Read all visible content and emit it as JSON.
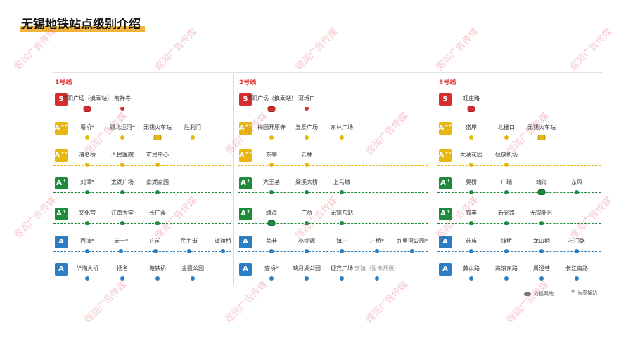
{
  "title": "无锡地铁站点级别介绍",
  "colors": {
    "S": "#d32f2f",
    "A++": "#e6b80f",
    "A+": "#1e8a3c",
    "A": "#2b7ec1",
    "section_title": "#e03a3a"
  },
  "sections": [
    {
      "title": "1号线",
      "rows": [
        {
          "level": "S",
          "stations": [
            "三阳广场（换乘站）",
            "南禅寺"
          ],
          "interchange": [
            0
          ]
        },
        {
          "level": "A++",
          "stations": [
            "堰桥*",
            "锡北运河*",
            "无锡火车站",
            "胜利门"
          ],
          "interchange": [
            2
          ]
        },
        {
          "level": "A++",
          "stations": [
            "清名桥",
            "人民医院",
            "市民中心"
          ],
          "interchange": []
        },
        {
          "level": "A+",
          "stations": [
            "刘潭*",
            "太湖广场",
            "南湖家园"
          ],
          "interchange": []
        },
        {
          "level": "A+",
          "stations": [
            "文化宫",
            "江南大学",
            "长广溪"
          ],
          "interchange": []
        },
        {
          "level": "A",
          "stations": [
            "西漳*",
            "天一*",
            "庄前",
            "民主街",
            "谈渡桥"
          ],
          "interchange": []
        },
        {
          "level": "A",
          "stations": [
            "华清大桥",
            "扬名",
            "塘铁桥",
            "金匮公园"
          ],
          "interchange": []
        }
      ]
    },
    {
      "title": "2号线",
      "rows": [
        {
          "level": "S",
          "stations": [
            "三阳广场（换乘站）",
            "河埒口"
          ],
          "interchange": [
            0
          ]
        },
        {
          "level": "A++",
          "stations": [
            "梅园开原寺",
            "五爱广场",
            "东林广场"
          ],
          "interchange": []
        },
        {
          "level": "A++",
          "stations": [
            "东亭",
            "云林"
          ],
          "interchange": []
        },
        {
          "level": "A+",
          "stations": [
            "大王基",
            "梁溪大桥",
            "上马墩"
          ],
          "interchange": []
        },
        {
          "level": "A+",
          "stations": [
            "靖海",
            "广益",
            "无锡东站"
          ],
          "interchange": [
            0
          ]
        },
        {
          "level": "A",
          "stations": [
            "荣巷",
            "小桃源",
            "镇庄",
            "庄桥*",
            "九里河公园*"
          ],
          "interchange": []
        },
        {
          "level": "A",
          "stations": [
            "查桥*",
            "映月湖公园",
            "迎宾广场",
            "安镇（暂未开通）"
          ],
          "interchange": []
        }
      ]
    },
    {
      "title": "3号线",
      "rows": [
        {
          "level": "S",
          "stations": [
            "旺庄路"
          ],
          "interchange": [
            0
          ]
        },
        {
          "level": "A++",
          "stations": [
            "盛岸",
            "北栅口",
            "无锡火车站"
          ],
          "interchange": [
            2
          ]
        },
        {
          "level": "A++",
          "stations": [
            "太湖花园",
            "硕放机场"
          ],
          "interchange": []
        },
        {
          "level": "A+",
          "stations": [
            "吴桥",
            "广瑞",
            "靖海",
            "东风"
          ],
          "interchange": [
            2
          ]
        },
        {
          "level": "A+",
          "stations": [
            "叙丰",
            "新光路",
            "无锡新区"
          ],
          "interchange": []
        },
        {
          "level": "A",
          "stations": [
            "苏庙",
            "钱桥",
            "龙山梢",
            "石门路"
          ],
          "interchange": []
        },
        {
          "level": "A",
          "stations": [
            "黄山路",
            "高浪东路",
            "周泾巷",
            "长江南路"
          ],
          "interchange": []
        }
      ]
    }
  ],
  "legend": {
    "interchange": "为换乘站",
    "elevated": "为高架站",
    "elevated_symbol": "*"
  },
  "watermark": "煜润广告传媒"
}
